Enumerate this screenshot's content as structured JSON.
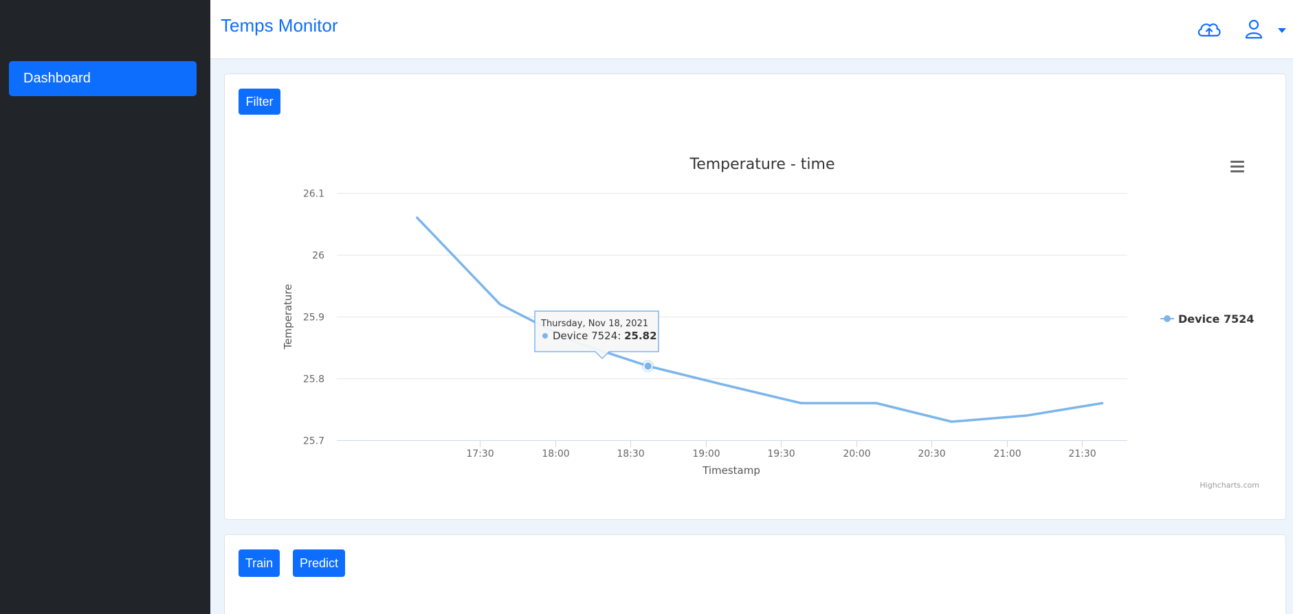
{
  "sidebar": {
    "items": [
      {
        "label": "Dashboard"
      }
    ]
  },
  "header": {
    "title": "Temps Monitor",
    "upload_icon": "cloud-upload-icon",
    "user_icon": "user-icon"
  },
  "filter_card": {
    "filter_label": "Filter"
  },
  "actions_card": {
    "train_label": "Train",
    "predict_label": "Predict"
  },
  "colors": {
    "accent": "#0d6efd",
    "sidebar_bg": "#212529",
    "series": "#7cb5ec"
  },
  "chart_data": {
    "type": "line",
    "title": "Temperature - time",
    "xlabel": "Timestamp",
    "ylabel": "Temperature",
    "x_ticks": [
      "17:30",
      "18:00",
      "18:30",
      "19:00",
      "19:30",
      "20:00",
      "20:30",
      "21:00",
      "21:30"
    ],
    "y_ticks": [
      "25.7",
      "25.8",
      "25.9",
      "26",
      "26.1"
    ],
    "ylim": [
      25.7,
      26.1
    ],
    "grid": true,
    "legend": "right",
    "series": [
      {
        "name": "Device 7524",
        "points": [
          {
            "x": "17:05",
            "y": 26.06
          },
          {
            "x": "17:38",
            "y": 25.92
          },
          {
            "x": "18:07",
            "y": 25.86
          },
          {
            "x": "18:37",
            "y": 25.82
          },
          {
            "x": "19:07",
            "y": 25.79
          },
          {
            "x": "19:38",
            "y": 25.76
          },
          {
            "x": "20:08",
            "y": 25.76
          },
          {
            "x": "20:38",
            "y": 25.73
          },
          {
            "x": "21:08",
            "y": 25.74
          },
          {
            "x": "21:38",
            "y": 25.76
          }
        ]
      }
    ],
    "tooltip": {
      "date": "Thursday, Nov 18, 2021",
      "series": "Device 7524",
      "value": "25.82"
    },
    "credits": "Highcharts.com"
  }
}
